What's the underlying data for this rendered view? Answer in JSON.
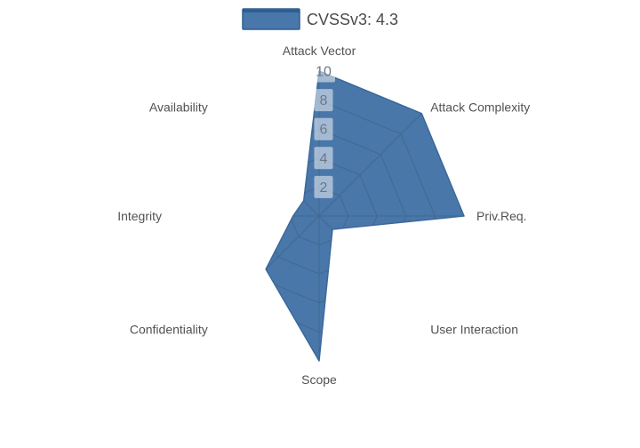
{
  "legend": {
    "label": "CVSSv3: 4.3",
    "swatch_fill": "#4a77a9",
    "swatch_border": "#2d5e92"
  },
  "chart_data": {
    "type": "radar",
    "title": "CVSSv3: 4.3",
    "categories": [
      "Attack Vector",
      "Attack Complexity",
      "Priv.Req.",
      "User Interaction",
      "Scope",
      "Confidentiality",
      "Integrity",
      "Availability"
    ],
    "series": [
      {
        "name": "CVSSv3: 4.3",
        "values": [
          10,
          10,
          10,
          1.3,
          10,
          5.2,
          1.8,
          1.5
        ]
      }
    ],
    "radial_ticks": [
      2,
      4,
      6,
      8,
      10
    ],
    "rlim": [
      0,
      10
    ],
    "start_axis": "top",
    "direction": "clockwise",
    "legend_position": "top-center",
    "grid_visible_inside_fill_only": true,
    "colors": {
      "fill": "#4a77a9",
      "edge": "#3a6a9c",
      "grid": "#3f668e",
      "axis_label": "#525252",
      "tick_text": "#6b7888",
      "tick_box": "rgba(255,255,255,0.5)",
      "legend_text": "#4a4a4a"
    }
  }
}
